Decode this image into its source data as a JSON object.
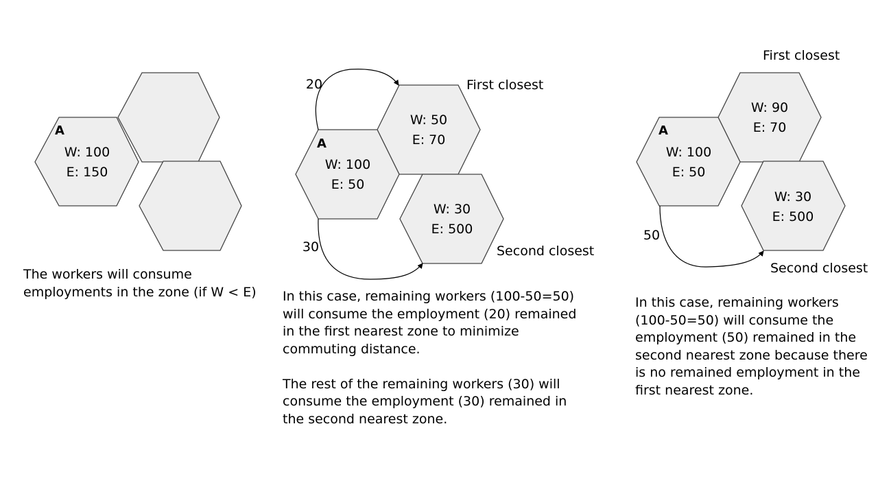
{
  "panel1": {
    "zone_a": {
      "label": "A",
      "w": "W: 100",
      "e": "E: 150"
    },
    "caption": "The workers will consume employments in the zone (if W < E)"
  },
  "panel2": {
    "zone_a": {
      "label": "A",
      "w": "W: 100",
      "e": "E: 50"
    },
    "first": {
      "w": "W: 50",
      "e": "E: 70",
      "label": "First closest"
    },
    "second": {
      "w": "W: 30",
      "e": "E: 500",
      "label": "Second closest"
    },
    "flow_first": "20",
    "flow_second": "30",
    "caption_1": "In this case, remaining workers (100-50=50) will consume the employment (20) remained in the first nearest zone to minimize commuting distance.",
    "caption_2": "The rest of the remaining workers (30) will consume the employment (30) remained in the second nearest zone."
  },
  "panel3": {
    "zone_a": {
      "label": "A",
      "w": "W: 100",
      "e": "E: 50"
    },
    "first": {
      "w": "W: 90",
      "e": "E: 70",
      "label": "First closest"
    },
    "second": {
      "w": "W: 30",
      "e": "E: 500",
      "label": "Second closest"
    },
    "flow_second": "50",
    "caption": "In this case, remaining workers (100-50=50) will consume the employment (50) remained in the second nearest zone because there is no remained employment in the first nearest zone."
  }
}
